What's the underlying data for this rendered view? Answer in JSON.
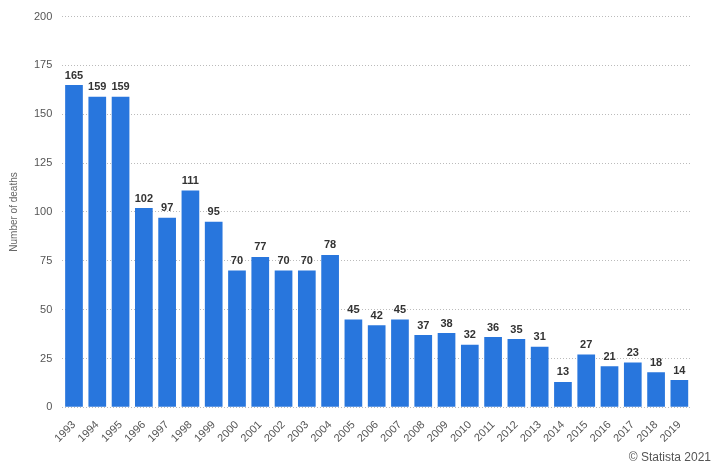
{
  "chart_data": {
    "type": "bar",
    "ylabel": "Number of deaths",
    "annotations": [
      "© Statista 2021"
    ],
    "categories": [
      "1993",
      "1994",
      "1995",
      "1996",
      "1997",
      "1998",
      "1999",
      "2000",
      "2001",
      "2002",
      "2003",
      "2004",
      "2005",
      "2006",
      "2007",
      "2008",
      "2009",
      "2010",
      "2011",
      "2012",
      "2013",
      "2014",
      "2015",
      "2016",
      "2017",
      "2018",
      "2019"
    ],
    "values": [
      165,
      159,
      159,
      102,
      97,
      111,
      95,
      70,
      77,
      70,
      70,
      78,
      45,
      42,
      45,
      37,
      38,
      32,
      36,
      35,
      31,
      13,
      27,
      21,
      23,
      18,
      14
    ],
    "color": "#2876dd",
    "ylim": [
      0,
      200
    ],
    "yticks": [
      0,
      25,
      50,
      75,
      100,
      125,
      150,
      175,
      200
    ],
    "grid": true,
    "data_labels": true
  }
}
